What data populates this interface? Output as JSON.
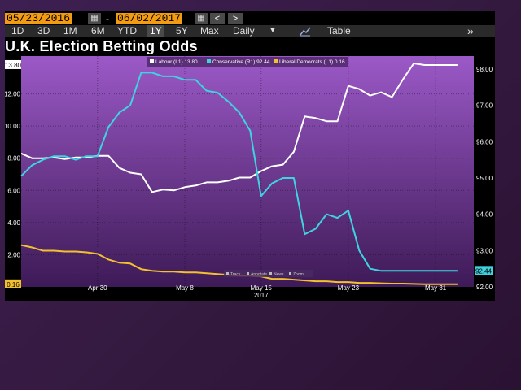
{
  "toolbar": {
    "start_date": "05/23/2016",
    "separator": "-",
    "end_date": "06/02/2017",
    "prev_label": "<",
    "next_label": ">",
    "periods": [
      "1D",
      "3D",
      "1M",
      "6M",
      "YTD",
      "1Y",
      "5Y",
      "Max"
    ],
    "active_period": "1Y",
    "frequency": "Daily",
    "dropdown_icon": "triangle-down-icon",
    "chart_icon": "line-chart-icon",
    "table_label": "Table",
    "expand_label": "»"
  },
  "colors": {
    "plot_top": "#9b59c7",
    "plot_bottom": "#3e1a57",
    "labour": "#ffffff",
    "conservative": "#3fd3e0",
    "libdem": "#f2c12e",
    "page_bg": "#3a1d4a"
  },
  "chart_bottom_tools": [
    "Track",
    "Annotate",
    "News",
    "Zoom"
  ],
  "chart_data": {
    "type": "line",
    "title": "U.K. Election Betting Odds",
    "x_tick_labels": [
      "Apr 30",
      "May 8",
      "May 15",
      "May 23",
      "May 31"
    ],
    "x_year_label": "2017",
    "left_axis": {
      "ylim": [
        0,
        14
      ],
      "ticks": [
        "2.00",
        "4.00",
        "6.00",
        "8.00",
        "10.00",
        "12.00"
      ]
    },
    "right_axis": {
      "ylim": [
        92,
        98.2
      ],
      "ticks": [
        "92.00",
        "93.00",
        "94.00",
        "95.00",
        "96.00",
        "97.00",
        "98.00"
      ]
    },
    "legend_position": "top-center",
    "series": [
      {
        "name": "Labour (L1) 13.80",
        "axis": "left",
        "last_label": "13.80",
        "x": [
          "2017-04-23",
          "2017-04-24",
          "2017-04-25",
          "2017-04-26",
          "2017-04-27",
          "2017-04-28",
          "2017-04-29",
          "2017-04-30",
          "2017-05-01",
          "2017-05-02",
          "2017-05-03",
          "2017-05-04",
          "2017-05-05",
          "2017-05-06",
          "2017-05-07",
          "2017-05-08",
          "2017-05-09",
          "2017-05-10",
          "2017-05-11",
          "2017-05-12",
          "2017-05-13",
          "2017-05-14",
          "2017-05-15",
          "2017-05-16",
          "2017-05-17",
          "2017-05-18",
          "2017-05-19",
          "2017-05-20",
          "2017-05-21",
          "2017-05-22",
          "2017-05-23",
          "2017-05-24",
          "2017-05-25",
          "2017-05-26",
          "2017-05-27",
          "2017-05-28",
          "2017-05-29",
          "2017-05-30",
          "2017-05-31",
          "2017-06-01",
          "2017-06-02"
        ],
        "values": [
          8.3,
          8.0,
          8.0,
          8.05,
          7.95,
          8.05,
          8.05,
          8.15,
          8.15,
          7.4,
          7.1,
          7.0,
          5.9,
          6.05,
          6.0,
          6.2,
          6.3,
          6.5,
          6.5,
          6.6,
          6.8,
          6.8,
          7.2,
          7.5,
          7.6,
          8.4,
          10.6,
          10.5,
          10.3,
          10.3,
          12.5,
          12.3,
          11.9,
          12.1,
          11.8,
          12.9,
          13.9,
          13.8,
          13.8,
          13.8,
          13.8
        ]
      },
      {
        "name": "Conservative (R1) 92.44",
        "axis": "right",
        "last_label": "92.44",
        "x": [
          "2017-04-23",
          "2017-04-24",
          "2017-04-25",
          "2017-04-26",
          "2017-04-27",
          "2017-04-28",
          "2017-04-29",
          "2017-04-30",
          "2017-05-01",
          "2017-05-02",
          "2017-05-03",
          "2017-05-04",
          "2017-05-05",
          "2017-05-06",
          "2017-05-07",
          "2017-05-08",
          "2017-05-09",
          "2017-05-10",
          "2017-05-11",
          "2017-05-12",
          "2017-05-13",
          "2017-05-14",
          "2017-05-15",
          "2017-05-16",
          "2017-05-17",
          "2017-05-18",
          "2017-05-19",
          "2017-05-20",
          "2017-05-21",
          "2017-05-22",
          "2017-05-23",
          "2017-05-24",
          "2017-05-25",
          "2017-05-26",
          "2017-05-27",
          "2017-05-28",
          "2017-05-29",
          "2017-05-30",
          "2017-05-31",
          "2017-06-01",
          "2017-06-02"
        ],
        "values": [
          95.05,
          95.35,
          95.5,
          95.6,
          95.6,
          95.5,
          95.6,
          95.6,
          96.4,
          96.8,
          97.0,
          97.9,
          97.9,
          97.8,
          97.8,
          97.7,
          97.7,
          97.4,
          97.35,
          97.1,
          96.8,
          96.3,
          94.5,
          94.85,
          95.0,
          95.0,
          93.45,
          93.6,
          94.0,
          93.9,
          94.1,
          93.0,
          92.5,
          92.44,
          92.44,
          92.44,
          92.44,
          92.44,
          92.44,
          92.44,
          92.44
        ]
      },
      {
        "name": "Liberal Democrats (L1) 0.16",
        "axis": "left",
        "last_label": "0.16",
        "x": [
          "2017-04-23",
          "2017-04-24",
          "2017-04-25",
          "2017-04-26",
          "2017-04-27",
          "2017-04-28",
          "2017-04-29",
          "2017-04-30",
          "2017-05-01",
          "2017-05-02",
          "2017-05-03",
          "2017-05-04",
          "2017-05-05",
          "2017-05-06",
          "2017-05-07",
          "2017-05-08",
          "2017-05-09",
          "2017-05-10",
          "2017-05-11",
          "2017-05-12",
          "2017-05-13",
          "2017-05-14",
          "2017-05-15",
          "2017-05-16",
          "2017-05-17",
          "2017-05-18",
          "2017-05-19",
          "2017-05-20",
          "2017-05-21",
          "2017-05-22",
          "2017-05-23",
          "2017-05-24",
          "2017-05-25",
          "2017-05-26",
          "2017-05-27",
          "2017-05-28",
          "2017-05-29",
          "2017-05-30",
          "2017-05-31",
          "2017-06-01",
          "2017-06-02"
        ],
        "values": [
          2.6,
          2.45,
          2.25,
          2.25,
          2.2,
          2.2,
          2.15,
          2.05,
          1.7,
          1.5,
          1.45,
          1.1,
          1.0,
          0.95,
          0.95,
          0.9,
          0.9,
          0.85,
          0.8,
          0.75,
          0.7,
          0.7,
          0.65,
          0.5,
          0.5,
          0.45,
          0.4,
          0.35,
          0.35,
          0.3,
          0.3,
          0.25,
          0.25,
          0.22,
          0.2,
          0.2,
          0.18,
          0.16,
          0.16,
          0.16,
          0.16
        ]
      }
    ]
  }
}
